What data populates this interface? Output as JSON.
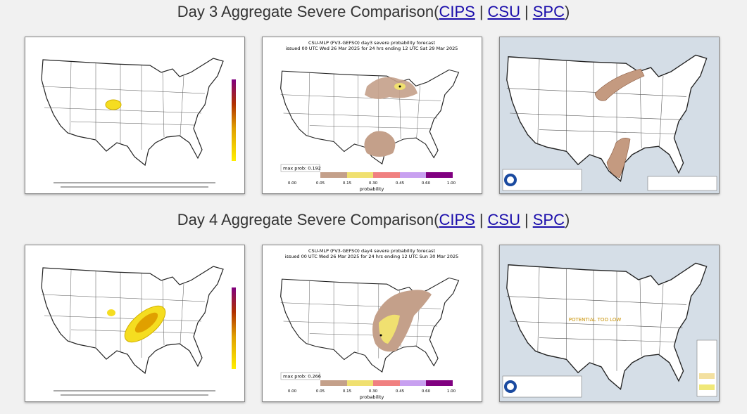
{
  "punctuation": {
    "open": "(",
    "separator": "|",
    "close": ")"
  },
  "csu_colorbar": {
    "ticks": [
      "0.00",
      "0.05",
      "0.15",
      "0.30",
      "0.45",
      "0.60",
      "1.00"
    ],
    "label": "probability"
  },
  "sections": [
    {
      "heading": "Day 3 Aggregate Severe Comparison",
      "links": [
        "CIPS",
        "CSU",
        "SPC"
      ],
      "csu": {
        "title": "CSU-MLP (FV3-GEFSO) day3 severe probability forecast",
        "issued": "issued 00 UTC Wed 26 Mar 2025 for 24 hrs ending 12 UTC Sat 29 Mar 2025",
        "max_prob": "max prob: 0.192"
      }
    },
    {
      "heading": "Day 4 Aggregate Severe Comparison",
      "links": [
        "CIPS",
        "CSU",
        "SPC"
      ],
      "csu": {
        "title": "CSU-MLP (FV3-GEFSO) day4 severe probability forecast",
        "issued": "issued 00 UTC Wed 26 Mar 2025 for 24 hrs ending 12 UTC Sun 30 Mar 2025",
        "max_prob": "max prob: 0.266"
      },
      "spc_note": "POTENTIAL TOO LOW"
    }
  ]
}
